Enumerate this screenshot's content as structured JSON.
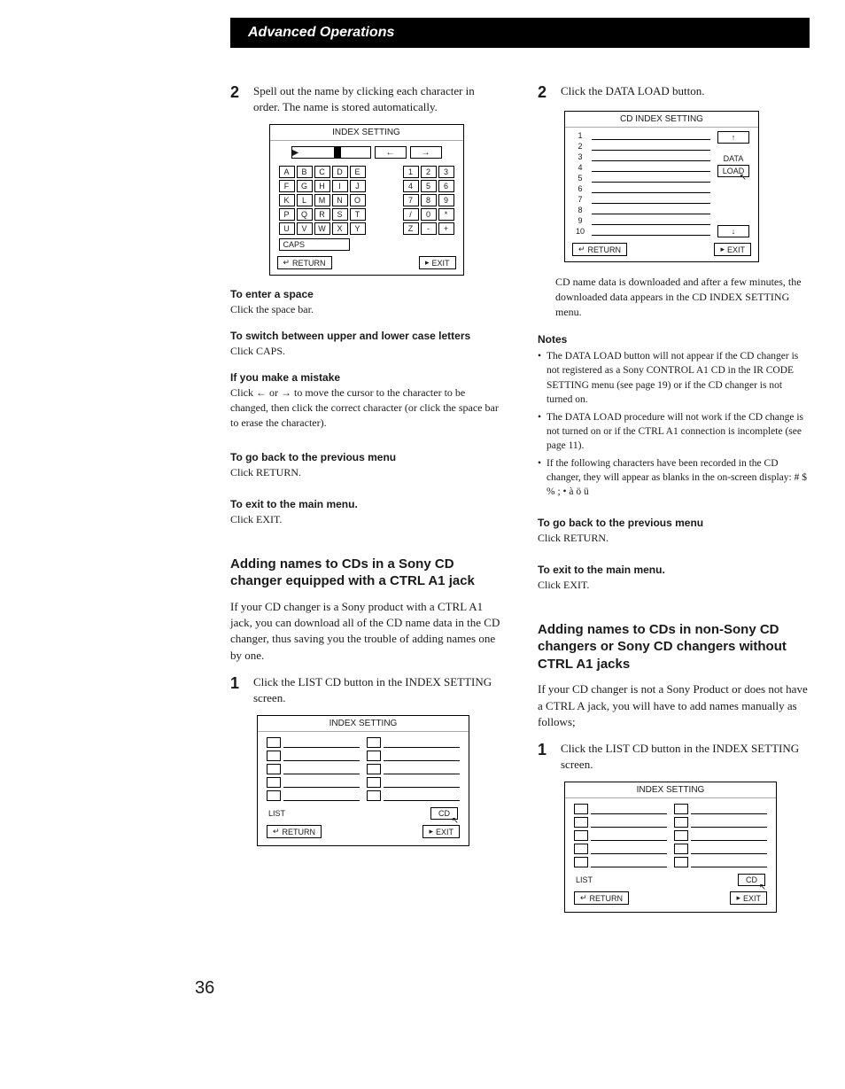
{
  "header": "Advanced Operations",
  "left": {
    "step2": {
      "num": "2",
      "text": "Spell out the name by clicking each character in order. The name is stored automatically."
    },
    "kb": {
      "title": "INDEX SETTING",
      "rows": [
        [
          "A",
          "B",
          "C",
          "D",
          "E",
          "1",
          "2",
          "3"
        ],
        [
          "F",
          "G",
          "H",
          "I",
          "J",
          "4",
          "5",
          "6"
        ],
        [
          "K",
          "L",
          "M",
          "N",
          "O",
          "7",
          "8",
          "9"
        ],
        [
          "P",
          "Q",
          "R",
          "S",
          "T",
          "/",
          "0",
          "*"
        ],
        [
          "U",
          "V",
          "W",
          "X",
          "Y",
          "Z",
          "-",
          "+"
        ]
      ],
      "caps": "CAPS",
      "return": "RETURN",
      "exit": "EXIT"
    },
    "sub1": {
      "h": "To enter a space",
      "t": "Click the space bar."
    },
    "sub2": {
      "h": "To switch between upper and lower case letters",
      "t": "Click CAPS."
    },
    "sub3": {
      "h": "If you make a mistake",
      "t": "Click ← or → to move the cursor to the character to be changed, then click the correct character (or click the space bar to erase the character)."
    },
    "sub4": {
      "h": "To go back to the previous menu",
      "t": "Click RETURN."
    },
    "sub5": {
      "h": "To exit to the main menu.",
      "t": "Click EXIT."
    },
    "sectionA": {
      "h": "Adding names to CDs in a Sony CD changer equipped with a CTRL A1 jack",
      "p": "If your CD changer is a Sony product with a CTRL A1 jack, you can download all of the CD name data in the CD changer, thus saving you the trouble of adding names one by one."
    },
    "step1": {
      "num": "1",
      "text": "Click the LIST CD button in the INDEX SETTING screen."
    },
    "listDiag": {
      "title": "INDEX SETTING",
      "list": "LIST",
      "cd": "CD",
      "return": "RETURN",
      "exit": "EXIT"
    }
  },
  "right": {
    "step2": {
      "num": "2",
      "text": "Click the DATA LOAD button."
    },
    "cdindex": {
      "title": "CD INDEX SETTING",
      "nums": [
        "1",
        "2",
        "3",
        "4",
        "5",
        "6",
        "7",
        "8",
        "9",
        "10"
      ],
      "data": "DATA",
      "load": "LOAD",
      "return": "RETURN",
      "exit": "EXIT"
    },
    "afterDiag": "CD name data is downloaded and after a few minutes, the downloaded data appears in the CD INDEX SETTING menu.",
    "notesHeading": "Notes",
    "notes": [
      "The DATA LOAD button will not appear if the CD changer is not registered as a Sony CONTROL A1 CD in the IR CODE SETTING menu (see page 19) or if the CD changer is not turned on.",
      "The DATA LOAD procedure will not work if the CD change is not turned on or if the CTRL A1 connection is incomplete (see page 11).",
      "If the following characters have been recorded in the CD changer, they will appear as blanks in the on-screen display: # $ % ; • à ö ü"
    ],
    "sub1": {
      "h": "To go back to the previous menu",
      "t": "Click RETURN."
    },
    "sub2": {
      "h": "To exit to the main menu.",
      "t": "Click EXIT."
    },
    "sectionB": {
      "h": "Adding names to CDs in non-Sony CD changers or Sony CD changers without CTRL A1 jacks",
      "p": "If your CD changer is not a Sony Product or does not have a CTRL A jack, you will have to add names manually as follows;"
    },
    "step1": {
      "num": "1",
      "text": "Click the LIST CD button in the INDEX SETTING screen."
    },
    "listDiag": {
      "title": "INDEX SETTING",
      "list": "LIST",
      "cd": "CD",
      "return": "RETURN",
      "exit": "EXIT"
    }
  },
  "pageNum": "36"
}
